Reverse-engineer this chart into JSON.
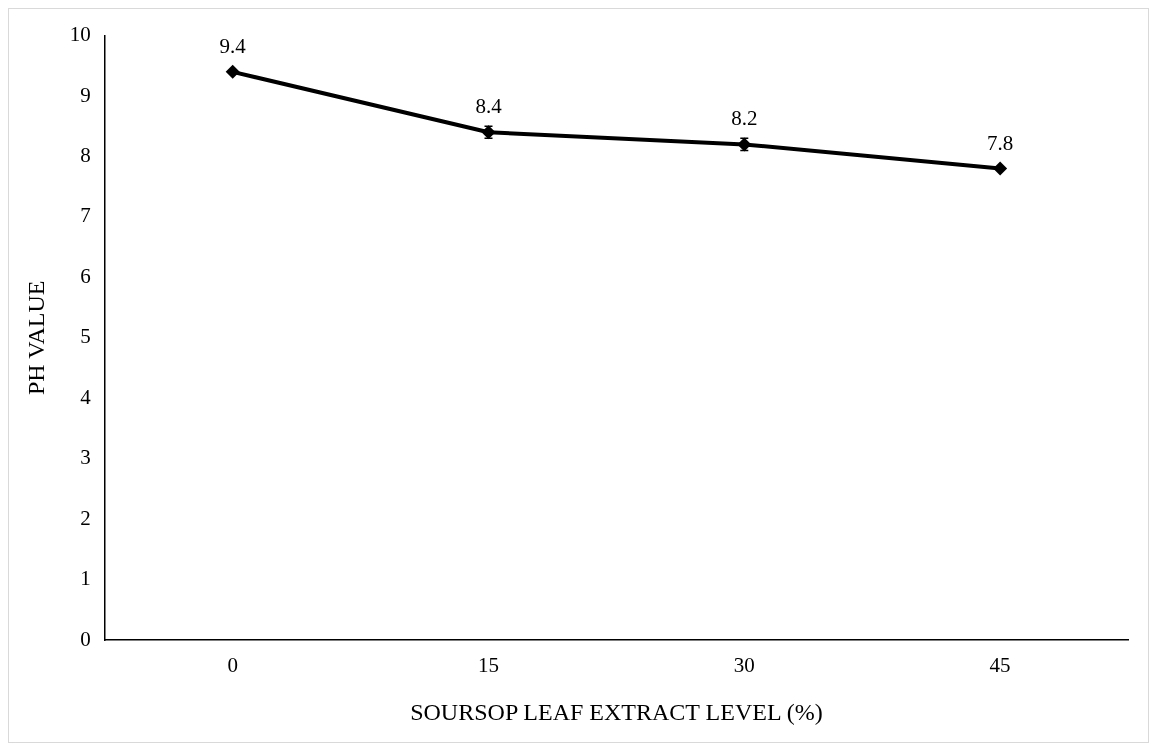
{
  "chart_data": {
    "type": "line",
    "xlabel": "SOURSOP LEAF EXTRACT LEVEL (%)",
    "ylabel": "PH VALUE",
    "categories": [
      "0",
      "15",
      "30",
      "45"
    ],
    "series": [
      {
        "color": "#000000",
        "values": [
          9.4,
          8.4,
          8.2,
          7.8
        ],
        "errors": [
          null,
          0.1,
          0.1,
          null
        ]
      }
    ],
    "ylim": [
      0,
      10
    ],
    "yticks": [
      0,
      1,
      2,
      3,
      4,
      5,
      6,
      7,
      8,
      9,
      10
    ],
    "grid": false,
    "legend": false,
    "marker": "diamond",
    "line_style": "solid",
    "data_labels": true
  }
}
